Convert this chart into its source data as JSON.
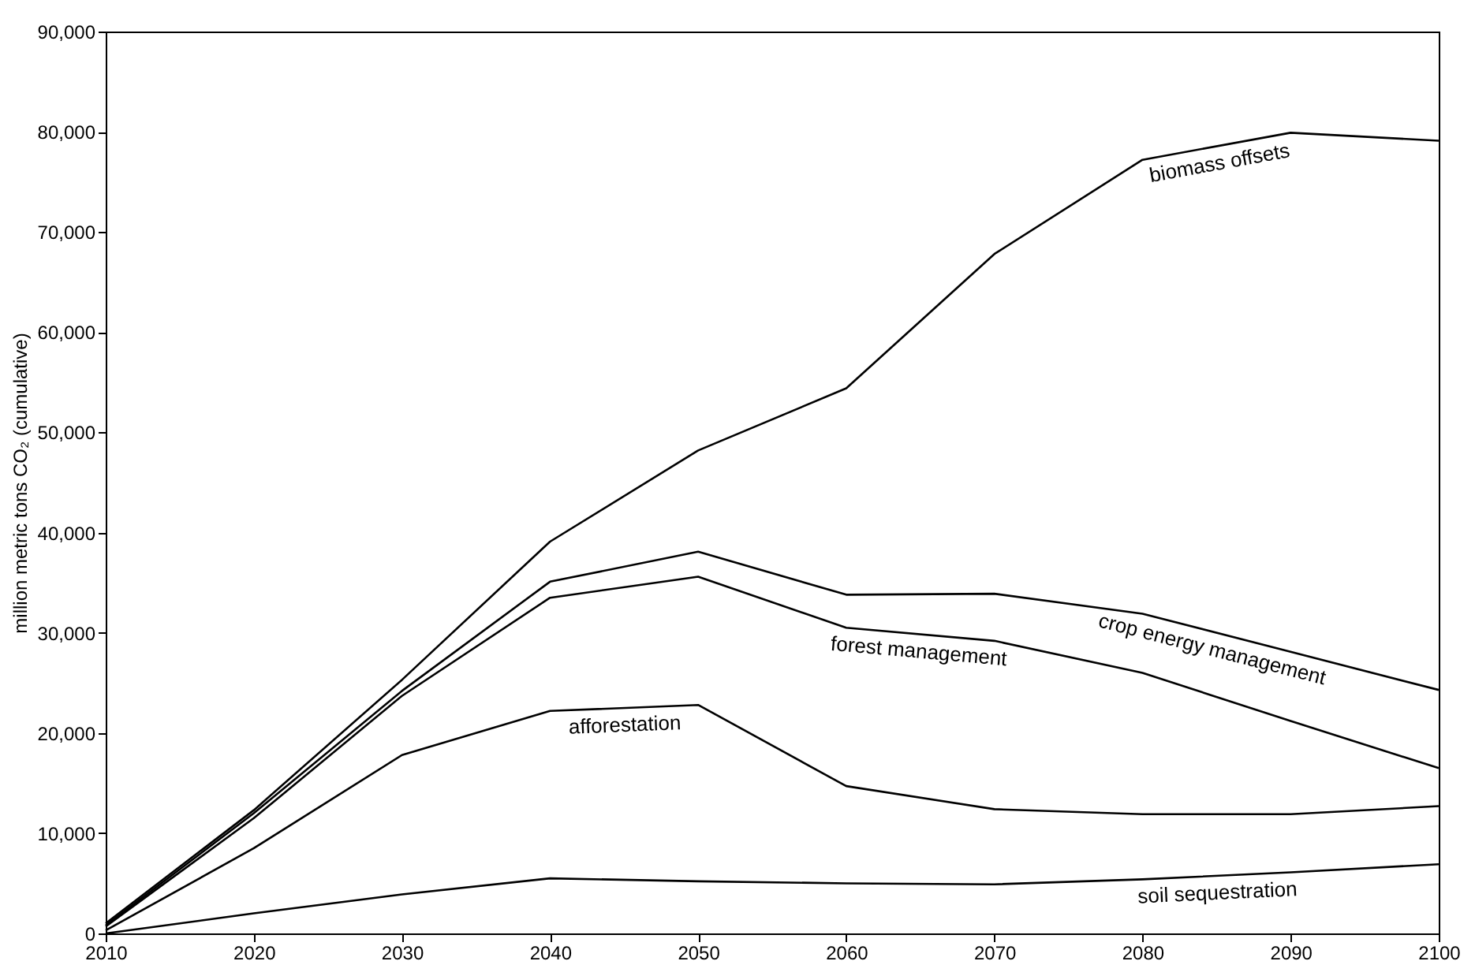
{
  "chart_data": {
    "type": "line",
    "ylabel": "million metric tons CO₂ (cumulative)",
    "x": [
      2010,
      2020,
      2030,
      2040,
      2050,
      2060,
      2070,
      2080,
      2090,
      2100
    ],
    "series": [
      {
        "name": "soil sequestration",
        "color": "#000000",
        "values": [
          0,
          2000,
          3900,
          5500,
          5200,
          5000,
          4900,
          5400,
          6100,
          6900
        ]
      },
      {
        "name": "afforestation",
        "color": "#000000",
        "values": [
          300,
          8500,
          17800,
          22200,
          22800,
          14700,
          12400,
          11900,
          11900,
          12700
        ]
      },
      {
        "name": "forest management",
        "color": "#000000",
        "values": [
          700,
          11500,
          23700,
          33500,
          35600,
          30500,
          29200,
          26000,
          21200,
          16500
        ]
      },
      {
        "name": "crop energy management",
        "color": "#000000",
        "values": [
          800,
          12000,
          24200,
          35100,
          38100,
          33800,
          33900,
          31900,
          28100,
          24300
        ]
      },
      {
        "name": "biomass offsets",
        "color": "#000000",
        "values": [
          1000,
          12300,
          25300,
          39100,
          48200,
          54400,
          67800,
          77200,
          79900,
          79100
        ]
      }
    ],
    "xlim": [
      2010,
      2100
    ],
    "xticks": [
      2010,
      2020,
      2030,
      2040,
      2050,
      2060,
      2070,
      2080,
      2090,
      2100
    ],
    "ylim": [
      0,
      90000
    ],
    "yticks": [
      {
        "value": 0,
        "label": "0"
      },
      {
        "value": 10000,
        "label": "10,000"
      },
      {
        "value": 20000,
        "label": "20,000"
      },
      {
        "value": 30000,
        "label": "30,000"
      },
      {
        "value": 40000,
        "label": "40,000"
      },
      {
        "value": 50000,
        "label": "50,000"
      },
      {
        "value": 60000,
        "label": "60,000"
      },
      {
        "value": 70000,
        "label": "70,000"
      },
      {
        "value": 80000,
        "label": "80,000"
      },
      {
        "value": 90000,
        "label": "90,000"
      }
    ],
    "grid": false,
    "legend": false,
    "marker": "none",
    "line_style": "solid"
  }
}
